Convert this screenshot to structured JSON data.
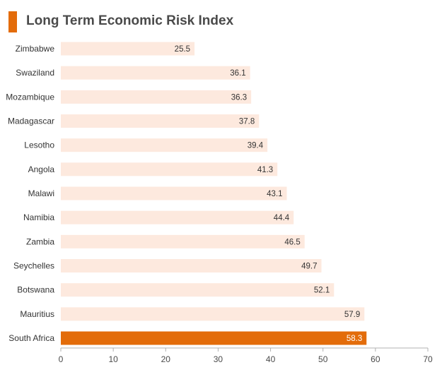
{
  "colors": {
    "accent": "#e36c0a",
    "bar": "#fde9de",
    "highlight": "#e36c0a",
    "axis": "#b0b0b0",
    "title": "#4a4a4a"
  },
  "chart_data": {
    "type": "bar",
    "orientation": "horizontal",
    "title": "Long Term Economic Risk Index",
    "xlabel": "",
    "ylabel": "",
    "xlim": [
      0,
      70
    ],
    "xticks": [
      0,
      10,
      20,
      30,
      40,
      50,
      60,
      70
    ],
    "grid": false,
    "highlight_category": "South Africa",
    "categories": [
      "Zimbabwe",
      "Swaziland",
      "Mozambique",
      "Madagascar",
      "Lesotho",
      "Angola",
      "Malawi",
      "Namibia",
      "Zambia",
      "Seychelles",
      "Botswana",
      "Mauritius",
      "South Africa"
    ],
    "values": [
      25.5,
      36.1,
      36.3,
      37.8,
      39.4,
      41.3,
      43.1,
      44.4,
      46.5,
      49.7,
      52.1,
      57.9,
      58.3
    ]
  }
}
